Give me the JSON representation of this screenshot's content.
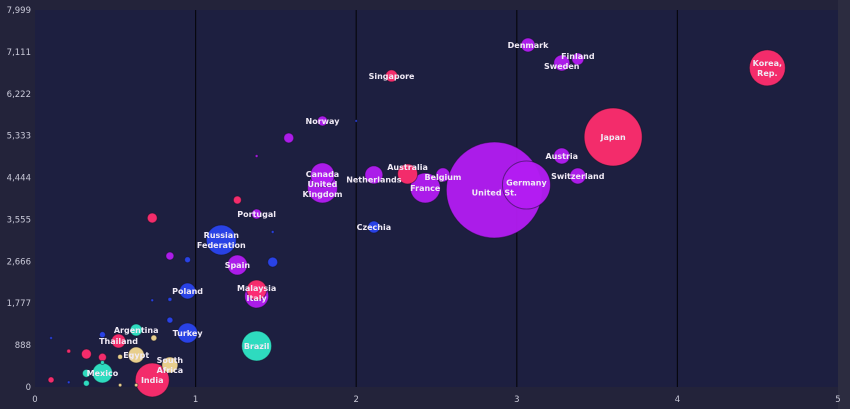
{
  "chart_data": {
    "type": "scatter",
    "subtype": "bubble",
    "title": "",
    "xlabel": "",
    "ylabel": "",
    "xlim": [
      0,
      5
    ],
    "ylim": [
      0,
      7999
    ],
    "x_ticks": [
      "0",
      "1",
      "2",
      "3",
      "4",
      "5"
    ],
    "y_ticks": [
      "0",
      "888",
      "1,777",
      "2,666",
      "3,555",
      "4,444",
      "5,333",
      "6,222",
      "7,111",
      "7,999"
    ],
    "grid": "vertical",
    "colors": {
      "magenta": "#b31cf2",
      "pink": "#ff2d6e",
      "blue": "#2a45ee",
      "cyan": "#2fe6c6",
      "yellow": "#f3d890"
    },
    "points": [
      {
        "label": "Korea, Rep.",
        "x": 4.56,
        "y": 6770,
        "size": 324,
        "color": "pink",
        "wrap": true
      },
      {
        "label": "Denmark",
        "x": 3.07,
        "y": 7257,
        "size": 49,
        "color": "magenta"
      },
      {
        "label": "Finland",
        "x": 3.38,
        "y": 6960,
        "size": 36,
        "color": "magenta"
      },
      {
        "label": "Sweden",
        "x": 3.28,
        "y": 6875,
        "size": 64,
        "color": "magenta"
      },
      {
        "label": "Singapore",
        "x": 2.22,
        "y": 6600,
        "size": 36,
        "color": "pink"
      },
      {
        "label": "Japan",
        "x": 3.6,
        "y": 5305,
        "size": 841,
        "color": "pink"
      },
      {
        "label": "Austria",
        "x": 3.28,
        "y": 4902,
        "size": 64,
        "color": "magenta"
      },
      {
        "label": "Switzerland",
        "x": 3.38,
        "y": 4477,
        "size": 64,
        "color": "magenta"
      },
      {
        "label": "United St.",
        "x": 2.86,
        "y": 4180,
        "size": 2304,
        "color": "magenta"
      },
      {
        "label": "Germany",
        "x": 3.06,
        "y": 4286,
        "size": 576,
        "color": "magenta"
      },
      {
        "label": "Norway",
        "x": 1.79,
        "y": 5645,
        "size": 25,
        "color": "magenta"
      },
      {
        "label": "",
        "x": 1.58,
        "y": 5284,
        "size": 25,
        "color": "magenta"
      },
      {
        "label": "",
        "x": 2.0,
        "y": 5645,
        "size": 1,
        "color": "blue"
      },
      {
        "label": "United Kingdom",
        "x": 1.79,
        "y": 4223,
        "size": 225,
        "color": "magenta",
        "wrap": true
      },
      {
        "label": "Canada",
        "x": 1.79,
        "y": 4500,
        "size": 144,
        "color": "magenta"
      },
      {
        "label": "Netherlands",
        "x": 2.11,
        "y": 4500,
        "size": 81,
        "color": "magenta"
      },
      {
        "label": "Australia",
        "x": 2.32,
        "y": 4520,
        "size": 100,
        "color": "pink"
      },
      {
        "label": "France",
        "x": 2.43,
        "y": 4223,
        "size": 225,
        "color": "magenta"
      },
      {
        "label": "Belgium",
        "x": 2.54,
        "y": 4500,
        "size": 49,
        "color": "magenta"
      },
      {
        "label": "Czechia",
        "x": 2.11,
        "y": 3395,
        "size": 36,
        "color": "blue"
      },
      {
        "label": "Portugal",
        "x": 1.38,
        "y": 3671,
        "size": 25,
        "color": "magenta"
      },
      {
        "label": "",
        "x": 1.26,
        "y": 3968,
        "size": 16,
        "color": "pink"
      },
      {
        "label": "",
        "x": 1.38,
        "y": 4900,
        "size": 2,
        "color": "magenta"
      },
      {
        "label": "",
        "x": 0.73,
        "y": 3586,
        "size": 25,
        "color": "pink"
      },
      {
        "label": "",
        "x": 1.48,
        "y": 3290,
        "size": 2,
        "color": "blue"
      },
      {
        "label": "Russian Federation",
        "x": 1.16,
        "y": 3120,
        "size": 225,
        "color": "blue",
        "wrap": true
      },
      {
        "label": "Spain",
        "x": 1.26,
        "y": 2589,
        "size": 100,
        "color": "magenta"
      },
      {
        "label": "",
        "x": 1.48,
        "y": 2650,
        "size": 25,
        "color": "blue"
      },
      {
        "label": "",
        "x": 0.84,
        "y": 2780,
        "size": 16,
        "color": "magenta"
      },
      {
        "label": "",
        "x": 0.95,
        "y": 2700,
        "size": 9,
        "color": "blue"
      },
      {
        "label": "Poland",
        "x": 0.95,
        "y": 2037,
        "size": 64,
        "color": "blue"
      },
      {
        "label": "Italy",
        "x": 1.38,
        "y": 1931,
        "size": 144,
        "color": "magenta"
      },
      {
        "label": "Malaysia",
        "x": 1.38,
        "y": 2058,
        "size": 100,
        "color": "pink"
      },
      {
        "label": "",
        "x": 0.84,
        "y": 1860,
        "size": 4,
        "color": "blue"
      },
      {
        "label": "",
        "x": 0.73,
        "y": 1840,
        "size": 2,
        "color": "blue"
      },
      {
        "label": "",
        "x": 0.84,
        "y": 1420,
        "size": 9,
        "color": "blue"
      },
      {
        "label": "Turkey",
        "x": 0.95,
        "y": 1146,
        "size": 100,
        "color": "blue"
      },
      {
        "label": "Brazil",
        "x": 1.38,
        "y": 870,
        "size": 225,
        "color": "cyan"
      },
      {
        "label": "Argentina",
        "x": 0.63,
        "y": 1210,
        "size": 36,
        "color": "cyan"
      },
      {
        "label": "",
        "x": 0.74,
        "y": 1040,
        "size": 9,
        "color": "yellow"
      },
      {
        "label": "Thailand",
        "x": 0.52,
        "y": 976,
        "size": 49,
        "color": "pink"
      },
      {
        "label": "",
        "x": 0.42,
        "y": 1110,
        "size": 9,
        "color": "blue"
      },
      {
        "label": "Egypt",
        "x": 0.63,
        "y": 679,
        "size": 64,
        "color": "yellow"
      },
      {
        "label": "",
        "x": 0.53,
        "y": 640,
        "size": 6,
        "color": "yellow"
      },
      {
        "label": "South Africa",
        "x": 0.84,
        "y": 467,
        "size": 64,
        "color": "yellow",
        "wrap": true
      },
      {
        "label": "India",
        "x": 0.73,
        "y": 149,
        "size": 289,
        "color": "pink"
      },
      {
        "label": "Mexico",
        "x": 0.42,
        "y": 297,
        "size": 100,
        "color": "cyan"
      },
      {
        "label": "",
        "x": 0.32,
        "y": 700,
        "size": 25,
        "color": "pink"
      },
      {
        "label": "",
        "x": 0.42,
        "y": 630,
        "size": 16,
        "color": "pink"
      },
      {
        "label": "",
        "x": 0.42,
        "y": 520,
        "size": 4,
        "color": "cyan"
      },
      {
        "label": "",
        "x": 0.32,
        "y": 290,
        "size": 16,
        "color": "cyan"
      },
      {
        "label": "",
        "x": 0.32,
        "y": 80,
        "size": 9,
        "color": "cyan"
      },
      {
        "label": "",
        "x": 0.1,
        "y": 150,
        "size": 9,
        "color": "pink"
      },
      {
        "label": "",
        "x": 0.21,
        "y": 760,
        "size": 4,
        "color": "pink"
      },
      {
        "label": "",
        "x": 0.1,
        "y": 1040,
        "size": 2,
        "color": "blue"
      },
      {
        "label": "",
        "x": 0.53,
        "y": 40,
        "size": 3,
        "color": "yellow"
      },
      {
        "label": "",
        "x": 0.63,
        "y": 40,
        "size": 3,
        "color": "yellow"
      },
      {
        "label": "",
        "x": 0.21,
        "y": 100,
        "size": 2,
        "color": "blue"
      }
    ]
  }
}
